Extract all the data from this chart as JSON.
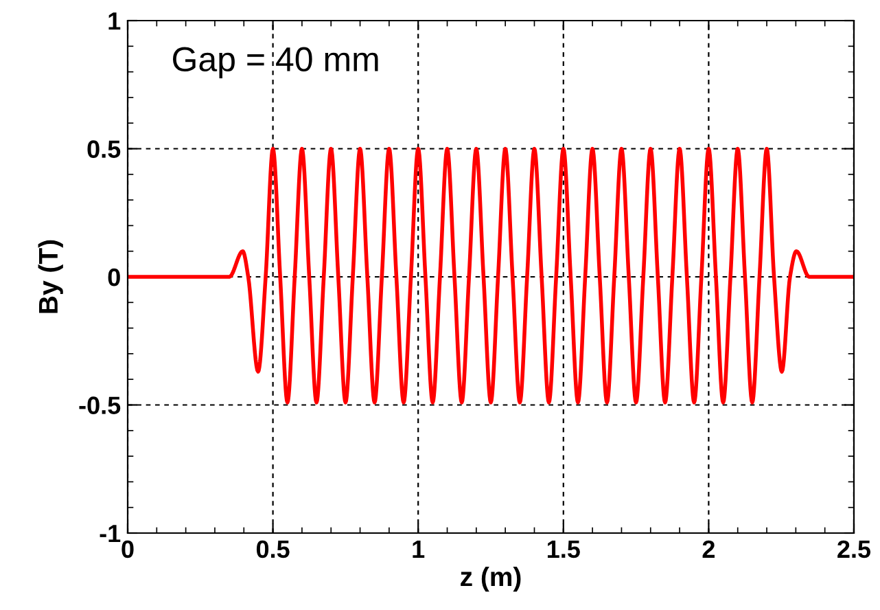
{
  "chart_data": {
    "type": "line",
    "xlabel": "z (m)",
    "ylabel": "By (T)",
    "annotations": [
      "Gap = 40 mm"
    ],
    "xlim": [
      0,
      2.5
    ],
    "xticks": [
      0,
      0.5,
      1,
      1.5,
      2,
      2.5
    ],
    "ylim": [
      -1,
      1
    ],
    "yticks": [
      -1,
      -0.5,
      0,
      0.5,
      1
    ],
    "grid": true,
    "legend": false,
    "marker": "none",
    "line_style": "solid",
    "series": [
      {
        "color": "#ff0000",
        "x": [
          0,
          0.15,
          0.35,
          0.396,
          0.415,
          0.449,
          0.475,
          0.5,
          0.525,
          0.55,
          0.575,
          0.6,
          0.625,
          0.65,
          0.675,
          0.7,
          0.725,
          0.75,
          0.775,
          0.8,
          0.825,
          0.85,
          0.875,
          0.9,
          0.925,
          0.95,
          0.975,
          1.0,
          1.025,
          1.05,
          1.075,
          1.1,
          1.125,
          1.15,
          1.175,
          1.2,
          1.225,
          1.25,
          1.275,
          1.3,
          1.325,
          1.35,
          1.375,
          1.4,
          1.425,
          1.45,
          1.475,
          1.5,
          1.525,
          1.55,
          1.575,
          1.6,
          1.625,
          1.65,
          1.675,
          1.7,
          1.725,
          1.75,
          1.775,
          1.8,
          1.825,
          1.85,
          1.875,
          1.9,
          1.925,
          1.95,
          1.975,
          2.0,
          2.025,
          2.05,
          2.075,
          2.1,
          2.125,
          2.15,
          2.175,
          2.2,
          2.225,
          2.252,
          2.28,
          2.302,
          2.346,
          2.5
        ],
        "values": [
          0,
          0,
          0,
          0.1,
          0,
          -0.37,
          0,
          0.5,
          0,
          -0.49,
          0,
          0.5,
          0,
          -0.49,
          0,
          0.5,
          0,
          -0.49,
          0,
          0.5,
          0,
          -0.49,
          0,
          0.5,
          0,
          -0.49,
          0,
          0.5,
          0,
          -0.49,
          0,
          0.5,
          0,
          -0.49,
          0,
          0.5,
          0,
          -0.49,
          0,
          0.5,
          0,
          -0.49,
          0,
          0.5,
          0,
          -0.49,
          0,
          0.5,
          0,
          -0.49,
          0,
          0.5,
          0,
          -0.49,
          0,
          0.5,
          0,
          -0.49,
          0,
          0.5,
          0,
          -0.49,
          0,
          0.5,
          0,
          -0.49,
          0,
          0.5,
          0,
          -0.49,
          0,
          0.5,
          0,
          -0.49,
          0,
          0.5,
          0,
          -0.37,
          0,
          0.1,
          0,
          0
        ]
      }
    ]
  }
}
